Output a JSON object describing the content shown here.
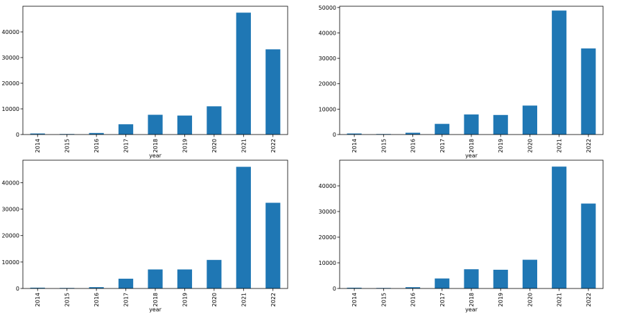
{
  "colors": {
    "bar": "#1f77b4",
    "axis": "#000000",
    "background": "#ffffff"
  },
  "chart_data": [
    {
      "type": "bar",
      "xlabel": "year",
      "ylabel": "",
      "ylim": [
        0,
        50000
      ],
      "yticks": [
        0,
        10000,
        20000,
        30000,
        40000
      ],
      "grid": false,
      "categories": [
        "2014",
        "2015",
        "2016",
        "2017",
        "2018",
        "2019",
        "2020",
        "2021",
        "2022"
      ],
      "values": [
        400,
        200,
        600,
        4000,
        7700,
        7400,
        11000,
        47500,
        33200
      ]
    },
    {
      "type": "bar",
      "xlabel": "year",
      "ylabel": "",
      "ylim": [
        0,
        50500
      ],
      "yticks": [
        0,
        10000,
        20000,
        30000,
        40000,
        50000
      ],
      "grid": false,
      "categories": [
        "2014",
        "2015",
        "2016",
        "2017",
        "2018",
        "2019",
        "2020",
        "2021",
        "2022"
      ],
      "values": [
        400,
        200,
        700,
        4200,
        7900,
        7700,
        11400,
        48800,
        33900
      ]
    },
    {
      "type": "bar",
      "xlabel": "year",
      "ylabel": "",
      "ylim": [
        0,
        48500
      ],
      "yticks": [
        0,
        10000,
        20000,
        30000,
        40000
      ],
      "grid": false,
      "categories": [
        "2014",
        "2015",
        "2016",
        "2017",
        "2018",
        "2019",
        "2020",
        "2021",
        "2022"
      ],
      "values": [
        300,
        200,
        500,
        3700,
        7200,
        7200,
        10800,
        46000,
        32400
      ]
    },
    {
      "type": "bar",
      "xlabel": "year",
      "ylabel": "",
      "ylim": [
        0,
        50000
      ],
      "yticks": [
        0,
        10000,
        20000,
        30000,
        40000
      ],
      "grid": false,
      "categories": [
        "2014",
        "2015",
        "2016",
        "2017",
        "2018",
        "2019",
        "2020",
        "2021",
        "2022"
      ],
      "values": [
        300,
        200,
        500,
        3900,
        7500,
        7300,
        11200,
        47500,
        33100
      ]
    }
  ]
}
